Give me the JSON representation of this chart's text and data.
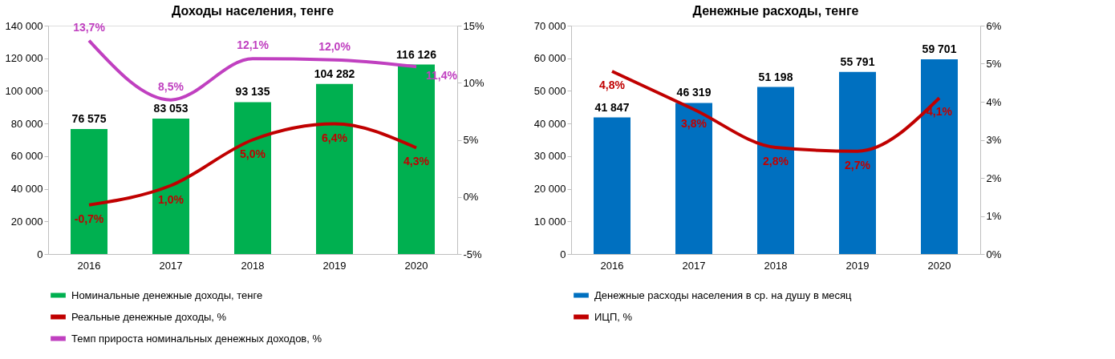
{
  "chart_data": [
    {
      "type": "bar",
      "title": "Доходы населения, тенге",
      "categories": [
        "2016",
        "2017",
        "2018",
        "2019",
        "2020"
      ],
      "series": [
        {
          "name": "Номинальные денежные доходы, тенге",
          "color": "#00b050",
          "values": [
            76575,
            83053,
            93135,
            104282,
            116126
          ],
          "value_labels": [
            "76 575",
            "83 053",
            "93 135",
            "104 282",
            "116 126"
          ]
        },
        {
          "type": "line",
          "axis": "y2",
          "name": "Реальные денежные доходы, %",
          "color": "#c00000",
          "values": [
            -0.7,
            1.0,
            5.0,
            6.4,
            4.3
          ],
          "value_labels": [
            "-0,7%",
            "1,0%",
            "5,0%",
            "6,4%",
            "4,3%"
          ]
        },
        {
          "type": "line",
          "axis": "y2",
          "name": "Темп прироста номинальных денежных доходов, %",
          "color": "#c040c0",
          "values": [
            13.7,
            8.5,
            12.1,
            12.0,
            11.4
          ],
          "value_labels": [
            "13,7%",
            "8,5%",
            "12,1%",
            "12,0%",
            "11,4%"
          ]
        }
      ],
      "ylim": [
        0,
        140000
      ],
      "yticks": [
        0,
        {
          "value": 20000,
          "label": "20 000"
        },
        {
          "value": 40000,
          "label": "40 000"
        },
        {
          "value": 60000,
          "label": "60 000"
        },
        {
          "value": 80000,
          "label": "80 000"
        },
        {
          "value": 100000,
          "label": "100 000"
        },
        {
          "value": 120000,
          "label": "120 000"
        },
        {
          "value": 140000,
          "label": "140 000"
        }
      ],
      "y2lim": [
        -5,
        15
      ],
      "y2ticks": [
        {
          "value": -5,
          "label": "-5%"
        },
        {
          "value": 0,
          "label": "0%"
        },
        {
          "value": 5,
          "label": "5%"
        },
        {
          "value": 10,
          "label": "10%"
        },
        {
          "value": 15,
          "label": "15%"
        }
      ],
      "legend": "bottom"
    },
    {
      "type": "bar",
      "title": "Денежные расходы, тенге",
      "categories": [
        "2016",
        "2017",
        "2018",
        "2019",
        "2020"
      ],
      "series": [
        {
          "name": "Денежные расходы населения в ср. на душу в месяц",
          "color": "#0070c0",
          "values": [
            41847,
            46319,
            51198,
            55791,
            59701
          ],
          "value_labels": [
            "41 847",
            "46 319",
            "51 198",
            "55 791",
            "59 701"
          ]
        },
        {
          "type": "line",
          "axis": "y2",
          "name": "ИЦП, %",
          "color": "#c00000",
          "values": [
            4.8,
            3.8,
            2.8,
            2.7,
            4.1
          ],
          "value_labels": [
            "4,8%",
            "3,8%",
            "2,8%",
            "2,7%",
            "4,1%"
          ]
        }
      ],
      "ylim": [
        0,
        70000
      ],
      "yticks": [
        0,
        {
          "value": 10000,
          "label": "10 000"
        },
        {
          "value": 20000,
          "label": "20 000"
        },
        {
          "value": 30000,
          "label": "30 000"
        },
        {
          "value": 40000,
          "label": "40 000"
        },
        {
          "value": 50000,
          "label": "50 000"
        },
        {
          "value": 60000,
          "label": "60 000"
        },
        {
          "value": 70000,
          "label": "70 000"
        }
      ],
      "y2lim": [
        0,
        6
      ],
      "y2ticks": [
        {
          "value": 0,
          "label": "0%"
        },
        {
          "value": 1,
          "label": "1%"
        },
        {
          "value": 2,
          "label": "2%"
        },
        {
          "value": 3,
          "label": "3%"
        },
        {
          "value": 4,
          "label": "4%"
        },
        {
          "value": 5,
          "label": "5%"
        },
        {
          "value": 6,
          "label": "6%"
        }
      ],
      "legend": "bottom"
    }
  ]
}
